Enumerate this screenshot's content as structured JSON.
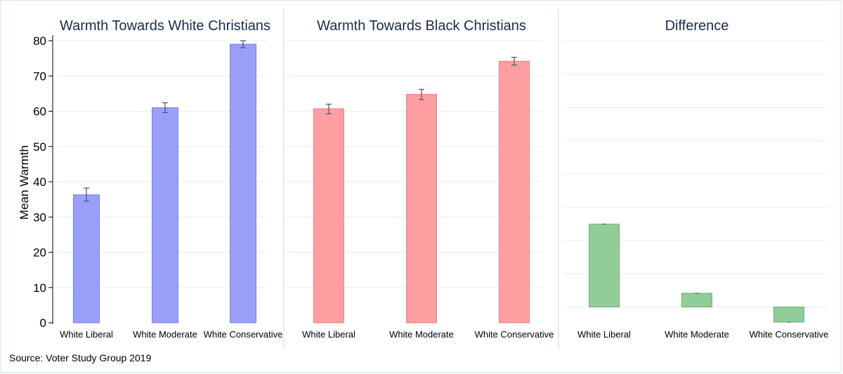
{
  "y_axis": {
    "title": "Mean Warmth",
    "ticks": [
      "0",
      "10",
      "20",
      "30",
      "40",
      "50",
      "60",
      "70",
      "80"
    ]
  },
  "source_note": "Source: Voter Study Group 2019",
  "colors": {
    "panel1_bar": "#9aa0f7",
    "panel1_border": "#7b7fe6",
    "panel2_bar": "#ff9ea0",
    "panel2_border": "#ef7f82",
    "panel3_bar": "#92cc98",
    "panel3_border": "#70b277",
    "title": "#1a2a4f",
    "grid": "#e3eff3",
    "divider": "#d6e8ee"
  },
  "chart_data": [
    {
      "type": "bar",
      "title": "Warmth Towards White Christians",
      "ylabel": "Mean Warmth",
      "ylim": [
        0,
        80
      ],
      "grid": true,
      "categories": [
        "White Liberal",
        "White Moderate",
        "White Conservative"
      ],
      "values": [
        36.3,
        61.0,
        79.0
      ],
      "error_low": [
        34.5,
        59.6,
        78.0
      ],
      "error_high": [
        38.2,
        62.4,
        80.0
      ]
    },
    {
      "type": "bar",
      "title": "Warmth Towards Black Christians",
      "ylim": [
        0,
        80
      ],
      "grid": true,
      "categories": [
        "White Liberal",
        "White Moderate",
        "White Conservative"
      ],
      "values": [
        60.7,
        64.8,
        74.2
      ],
      "error_low": [
        59.3,
        63.3,
        73.1
      ],
      "error_high": [
        62.0,
        66.2,
        75.3
      ]
    },
    {
      "type": "bar",
      "title": "Difference",
      "grid": true,
      "categories": [
        "White Liberal",
        "White Moderate",
        "White Conservative"
      ],
      "values": [
        24.4,
        3.8,
        -4.8
      ],
      "ylim": [
        -5,
        79
      ]
    }
  ]
}
